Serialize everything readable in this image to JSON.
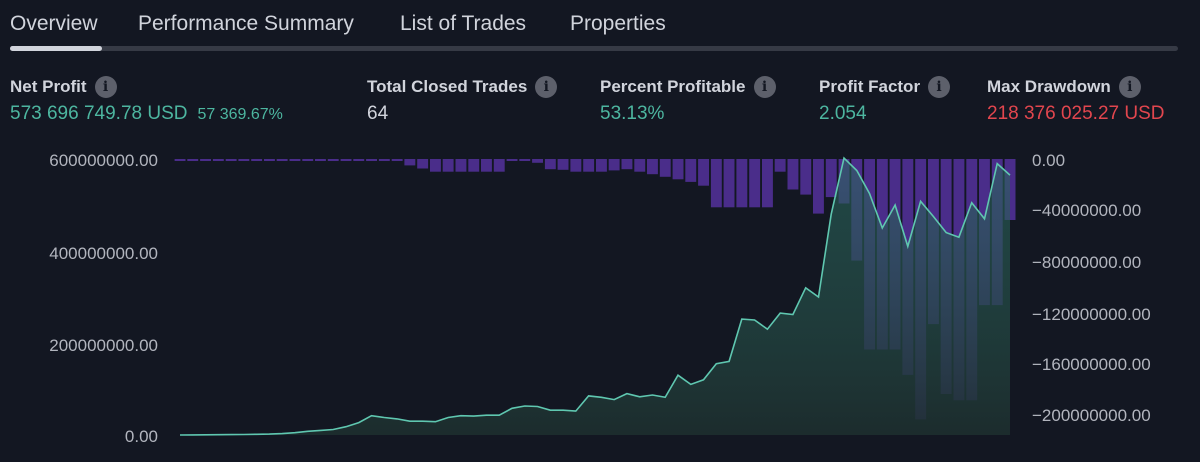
{
  "tabs": [
    {
      "label": "Overview",
      "active": true
    },
    {
      "label": "Performance Summary",
      "active": false
    },
    {
      "label": "List of Trades",
      "active": false
    },
    {
      "label": "Properties",
      "active": false
    }
  ],
  "metrics": {
    "net_profit": {
      "label": "Net Profit",
      "value": "573 696 749.78 USD",
      "sub": "57 369.67%"
    },
    "total_closed_trades": {
      "label": "Total Closed Trades",
      "value": "64"
    },
    "percent_profitable": {
      "label": "Percent Profitable",
      "value": "53.13%"
    },
    "profit_factor": {
      "label": "Profit Factor",
      "value": "2.054"
    },
    "max_drawdown": {
      "label": "Max Drawdown",
      "value": "218 376 025.27 USD"
    }
  },
  "icons": {
    "info": "info-icon"
  },
  "colors": {
    "background": "#131722",
    "positive": "#4db6a0",
    "negative": "#e2464e",
    "drawdown_bar": "#4a2d8a",
    "equity_line": "#5fc7b0"
  },
  "chart_data": {
    "type": "area",
    "left_axis": {
      "ticks": [
        "600000000.00",
        "400000000.00",
        "200000000.00",
        "0.00"
      ],
      "range": [
        0,
        600000000
      ]
    },
    "right_axis": {
      "ticks": [
        "0.00",
        "−40000000.00",
        "−80000000.00",
        "−120000000.00",
        "−160000000.00",
        "−200000000.00"
      ],
      "range": [
        -218376025.27,
        0
      ]
    },
    "equity": [
      0,
      200000,
      400000,
      600000,
      800000,
      1000000,
      1500000,
      2000000,
      3000000,
      5000000,
      8000000,
      10000000,
      12000000,
      18000000,
      27000000,
      42000000,
      38000000,
      35000000,
      30000000,
      30000000,
      29000000,
      38000000,
      42000000,
      41000000,
      43000000,
      43000000,
      58000000,
      63000000,
      62000000,
      54000000,
      54000000,
      52000000,
      85000000,
      82000000,
      77000000,
      90000000,
      83000000,
      87000000,
      82000000,
      130000000,
      110000000,
      120000000,
      155000000,
      160000000,
      252000000,
      250000000,
      230000000,
      265000000,
      262000000,
      320000000,
      300000000,
      480000000,
      602000000,
      575000000,
      525000000,
      450000000,
      500000000,
      410000000,
      508000000,
      475000000,
      440000000,
      430000000,
      505000000,
      470000000,
      590000000,
      565000000
    ],
    "drawdown": [
      0,
      0,
      0,
      0,
      0,
      0,
      0,
      0,
      0,
      0,
      0,
      0,
      0,
      0,
      0,
      -1000000,
      -1200000,
      -1200000,
      -5000000,
      -7500000,
      -10000000,
      -10000000,
      -10000000,
      -10000000,
      -10000000,
      -10000000,
      -1500000,
      -1500000,
      -3000000,
      -8000000,
      -8500000,
      -10000000,
      -10000000,
      -10000000,
      -9000000,
      -8000000,
      -10000000,
      -12000000,
      -14000000,
      -16000000,
      -18000000,
      -21000000,
      -38000000,
      -38000000,
      -38000000,
      -38000000,
      -38000000,
      -10000000,
      -24000000,
      -28000000,
      -43000000,
      -30000000,
      -35000000,
      -80000000,
      -150000000,
      -150000000,
      -150000000,
      -170000000,
      -205000000,
      -130000000,
      -185000000,
      -190000000,
      -190000000,
      -115000000,
      -115000000,
      -48000000
    ]
  }
}
